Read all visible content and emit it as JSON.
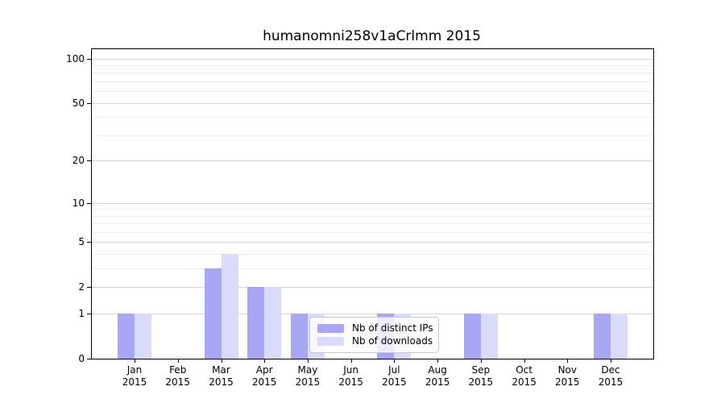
{
  "chart_data": {
    "type": "bar",
    "title": "humanomni258v1aCrlmm 2015",
    "categories": [
      "Jan 2015",
      "Feb 2015",
      "Mar 2015",
      "Apr 2015",
      "May 2015",
      "Jun 2015",
      "Jul 2015",
      "Aug 2015",
      "Sep 2015",
      "Oct 2015",
      "Nov 2015",
      "Dec 2015"
    ],
    "series": [
      {
        "name": "Nb of distinct IPs",
        "color": "#a7a7f5",
        "values": [
          1,
          0,
          3,
          2,
          1,
          0,
          1,
          0,
          1,
          0,
          0,
          1
        ]
      },
      {
        "name": "Nb of downloads",
        "color": "#dadafa",
        "values": [
          1,
          0,
          4,
          2,
          1,
          0,
          1,
          0,
          1,
          0,
          0,
          1
        ]
      }
    ],
    "xlabel": "",
    "ylabel": "",
    "yscale": "log1p",
    "y_tick_labels": [
      "0",
      "1",
      "2",
      "5",
      "10",
      "20",
      "50",
      "100"
    ],
    "y_ticks": [
      0,
      1,
      2,
      5,
      10,
      20,
      50,
      100
    ],
    "y_minor_gridlines": [
      3,
      4,
      6,
      7,
      8,
      9,
      30,
      40,
      60,
      70,
      80,
      90
    ],
    "ylim": [
      0,
      116
    ],
    "grid": "horizontal",
    "legend_position": "inside-bottom-center"
  },
  "colors": {
    "background": "#ffffff",
    "axis": "#000000",
    "grid_major": "#d6d6d6",
    "grid_minor": "#ececec",
    "bar_distinct_ips": "#a7a7f5",
    "bar_downloads": "#dadafa",
    "legend_border": "#c9c9c9"
  }
}
